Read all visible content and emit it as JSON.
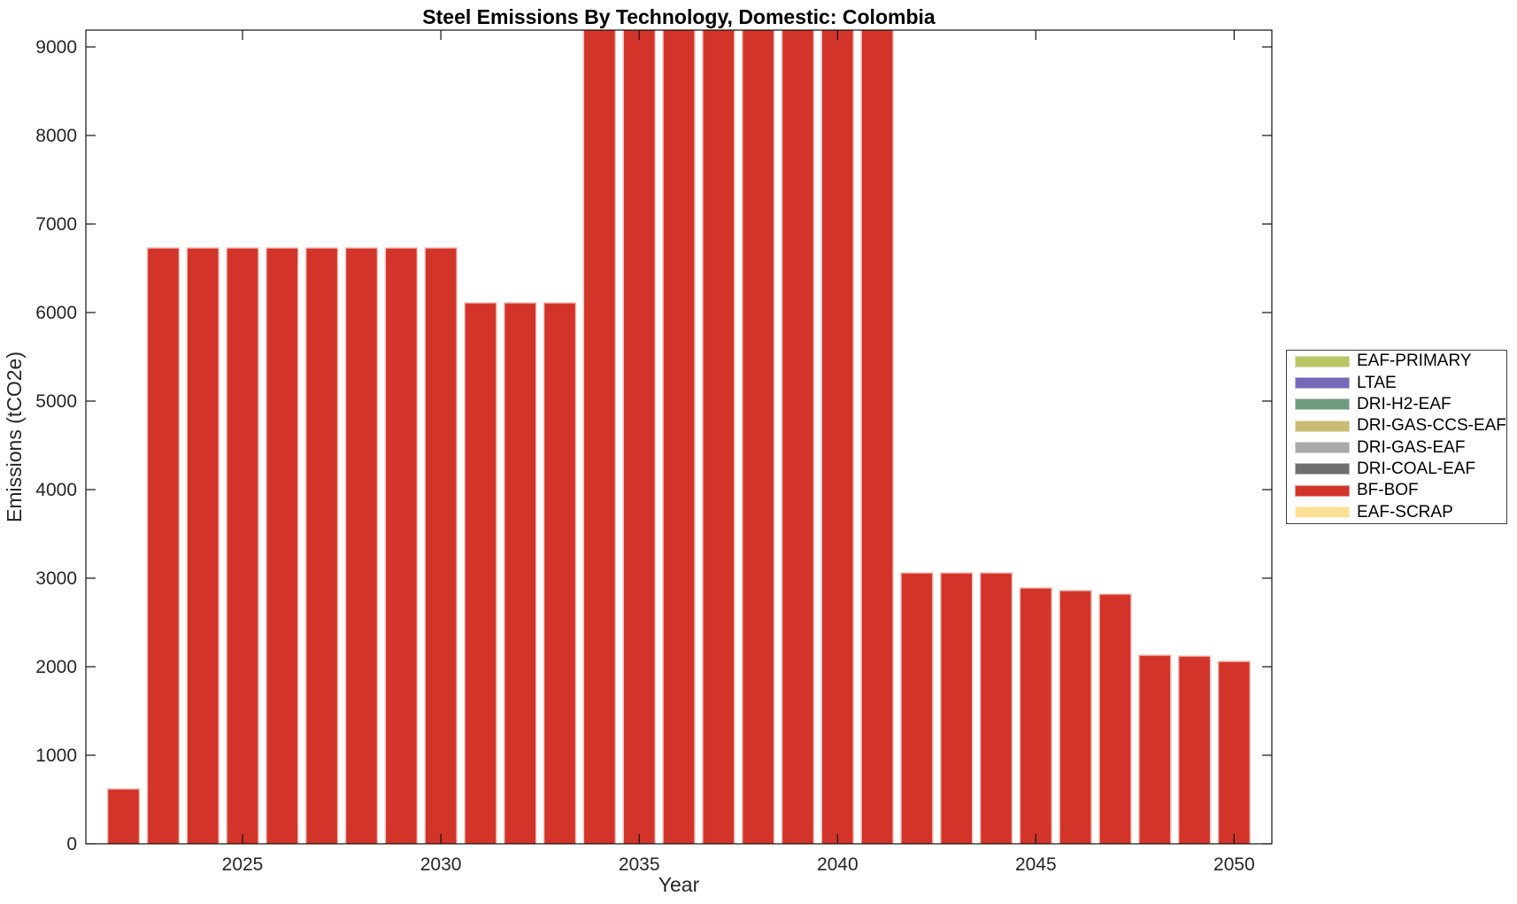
{
  "figure": {
    "background": "#ffffff"
  },
  "chart_data": {
    "type": "bar",
    "title": "Steel Emissions By Technology, Domestic: Colombia",
    "xlabel": "Year",
    "ylabel": "Emissions (tCO2e)",
    "categories": [
      2022,
      2023,
      2024,
      2025,
      2026,
      2027,
      2028,
      2029,
      2030,
      2031,
      2032,
      2033,
      2034,
      2035,
      2036,
      2037,
      2038,
      2039,
      2040,
      2041,
      2042,
      2043,
      2044,
      2045,
      2046,
      2047,
      2048,
      2049,
      2050
    ],
    "series": [
      {
        "name": "BF-BOF",
        "color": "#d2342a",
        "values": [
          620,
          6730,
          6730,
          6730,
          6730,
          6730,
          6730,
          6730,
          6730,
          6110,
          6110,
          6110,
          9190,
          9190,
          9190,
          9190,
          9190,
          9190,
          9190,
          9190,
          3060,
          3060,
          3060,
          2890,
          2860,
          2820,
          2130,
          2120,
          2060
        ]
      }
    ],
    "clipped_note": "Bars for 2034-2041 are clipped at the top of the y-axis; their tops extend beyond the visible axis maximum.",
    "clipped_years": [
      2034,
      2035,
      2036,
      2037,
      2038,
      2039,
      2040,
      2041
    ],
    "xticks": [
      2025,
      2030,
      2035,
      2040,
      2045,
      2050
    ],
    "yticks": [
      0,
      1000,
      2000,
      3000,
      4000,
      5000,
      6000,
      7000,
      8000,
      9000
    ],
    "xlim": [
      2021.05,
      2050.95
    ],
    "ylim": [
      0,
      9190
    ],
    "grid": false,
    "legend_position": "outside-right",
    "bar_edge_color": "#f0c0b6",
    "axis_color": "#111111",
    "tick_label_color": "#262626",
    "legend": {
      "entries": [
        {
          "label": "EAF-PRIMARY",
          "color": "#b9c465"
        },
        {
          "label": "LTAE",
          "color": "#7569b8"
        },
        {
          "label": "DRI-H2-EAF",
          "color": "#6f9c80"
        },
        {
          "label": "DRI-GAS-CCS-EAF",
          "color": "#c9bb72"
        },
        {
          "label": "DRI-GAS-EAF",
          "color": "#a9a9a9"
        },
        {
          "label": "DRI-COAL-EAF",
          "color": "#6e6e6e"
        },
        {
          "label": "BF-BOF",
          "color": "#d2342a"
        },
        {
          "label": "EAF-SCRAP",
          "color": "#fbe096"
        }
      ]
    }
  }
}
